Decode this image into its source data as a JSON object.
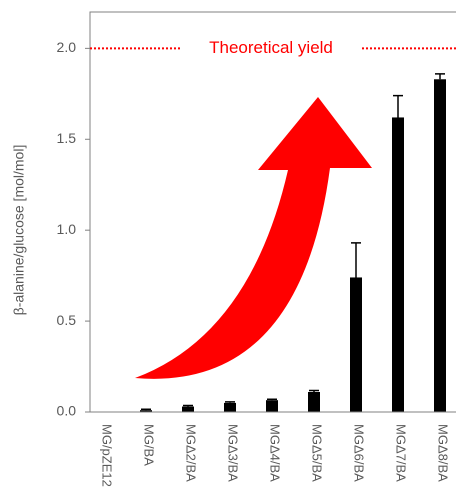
{
  "chart_data": {
    "type": "bar",
    "y_label": "β-alanine/glucose [mol/mol]",
    "categories": [
      "MG/pZE12",
      "MG/BA",
      "MGΔ2/BA",
      "MGΔ3/BA",
      "MGΔ4/BA",
      "MGΔ5/BA",
      "MGΔ6/BA",
      "MGΔ7/BA",
      "MGΔ8/BA"
    ],
    "values": [
      0,
      0.01,
      0.03,
      0.05,
      0.065,
      0.11,
      0.74,
      1.62,
      1.83
    ],
    "errors": [
      null,
      0.005,
      0.006,
      0.006,
      0.005,
      0.008,
      0.19,
      0.12,
      0.03
    ],
    "color": "#000000",
    "ylim": [
      0,
      2.2
    ],
    "yticks": [
      {
        "value": 0,
        "label": "0.0"
      },
      {
        "value": 0.5,
        "label": "0.5"
      },
      {
        "value": 1,
        "label": "1.0"
      },
      {
        "value": 1.5,
        "label": "1.5"
      },
      {
        "value": 2,
        "label": "2.0"
      }
    ],
    "reference_line": {
      "value": 2,
      "label": "Theoretical yield",
      "color": "#ff0000"
    },
    "grid": false
  }
}
